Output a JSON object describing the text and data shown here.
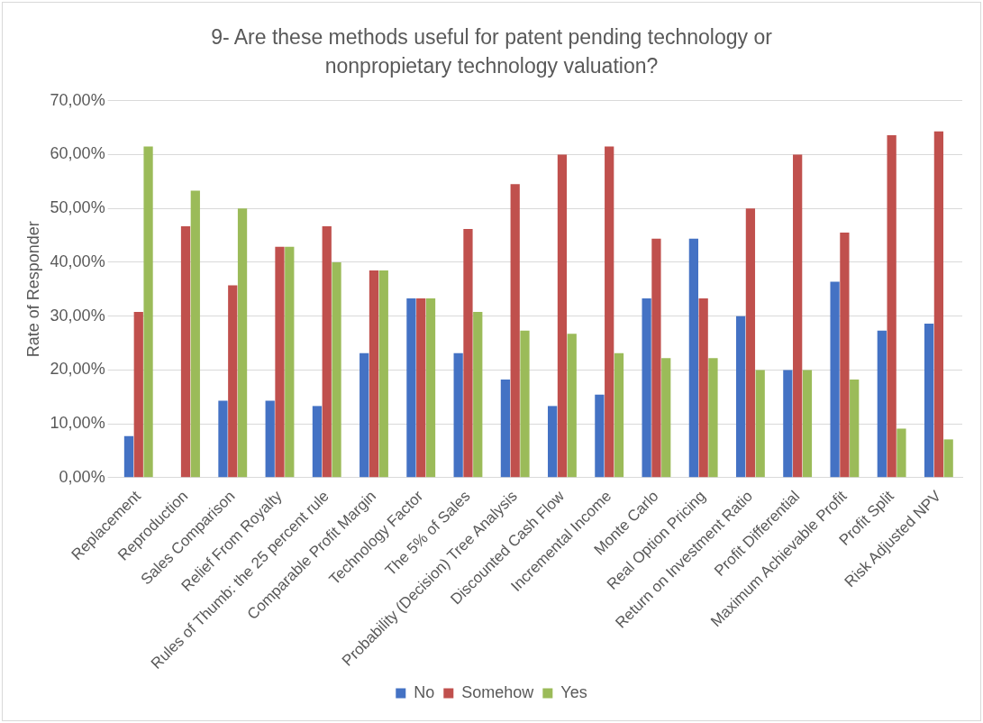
{
  "chart_data": {
    "type": "bar",
    "title": "9- Are these methods useful for patent pending technology or nonpropietary technology valuation?",
    "ylabel": "Rate of Responder",
    "categories": [
      "Replacement",
      "Reproduction",
      "Sales Comparison",
      "Relief From Royalty",
      "Rules of Thumb: the 25 percent rule",
      "Comparable Profit Margin",
      "Technology Factor",
      "The 5% of Sales",
      "Probability (Decision) Tree Analysis",
      "Discounted Cash Flow",
      "Incremental Income",
      "Monte Carlo",
      "Real Option Pricing",
      "Return on Investment Ratio",
      "Profit Differential",
      "Maximum Achievable Profit",
      "Profit Split",
      "Risk Adjusted NPV"
    ],
    "series": [
      {
        "name": "No",
        "color": "#4472c4",
        "values": [
          7.7,
          0,
          14.3,
          14.3,
          13.3,
          23.1,
          33.3,
          23.1,
          18.2,
          13.3,
          15.4,
          33.3,
          44.4,
          30,
          20,
          36.4,
          27.3,
          28.6
        ]
      },
      {
        "name": "Somehow",
        "color": "#c0504d",
        "values": [
          30.8,
          46.7,
          35.7,
          42.9,
          46.7,
          38.5,
          33.3,
          46.2,
          54.5,
          60,
          61.5,
          44.4,
          33.3,
          50,
          60,
          45.5,
          63.6,
          64.3
        ]
      },
      {
        "name": "Yes",
        "color": "#9bbb59",
        "values": [
          61.5,
          53.3,
          50,
          42.9,
          40,
          38.5,
          33.3,
          30.8,
          27.3,
          26.7,
          23.1,
          22.2,
          22.2,
          20,
          20,
          18.2,
          9.1,
          7.1
        ]
      }
    ],
    "ylim": [
      0,
      70
    ],
    "yticks": [
      {
        "value": 0,
        "label": "0,00%"
      },
      {
        "value": 10,
        "label": "10,00%"
      },
      {
        "value": 20,
        "label": "20,00%"
      },
      {
        "value": 30,
        "label": "30,00%"
      },
      {
        "value": 40,
        "label": "40,00%"
      },
      {
        "value": 50,
        "label": "50,00%"
      },
      {
        "value": 60,
        "label": "60,00%"
      },
      {
        "value": 70,
        "label": "70,00%"
      }
    ],
    "grid": "y",
    "legend": "bottom"
  }
}
